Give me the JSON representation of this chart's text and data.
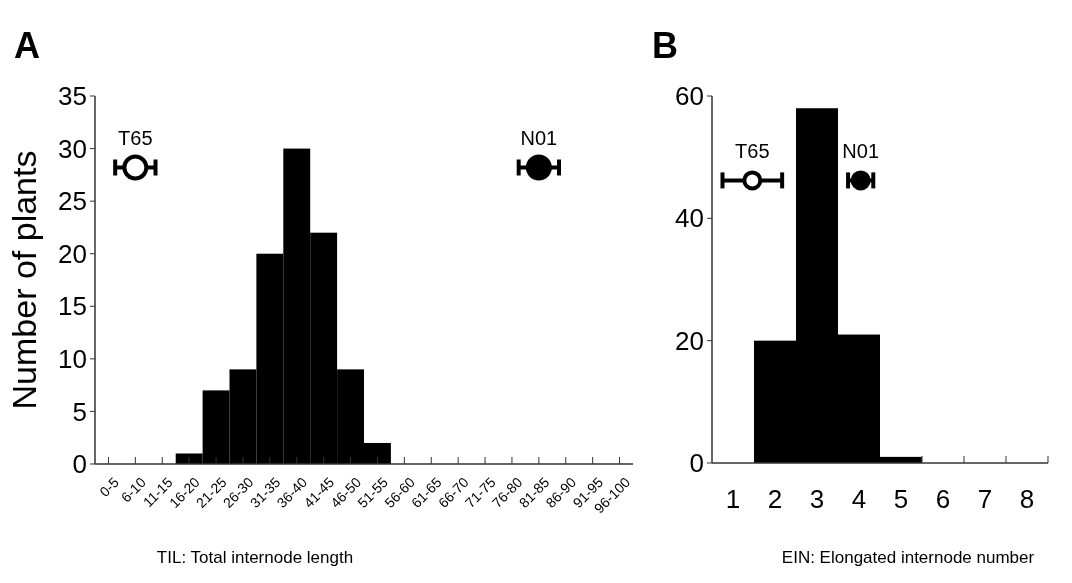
{
  "chart_data": [
    {
      "type": "bar",
      "title": "A",
      "xlabel": "TIL: Total internode length",
      "ylabel": "Number of plants",
      "categories": [
        "0-5",
        "6-10",
        "11-15",
        "16-20",
        "21-25",
        "26-30",
        "31-35",
        "36-40",
        "41-45",
        "46-50",
        "51-55",
        "56-60",
        "61-65",
        "66-70",
        "71-75",
        "76-80",
        "81-85",
        "86-90",
        "91-95",
        "96-100"
      ],
      "values": [
        0,
        0,
        0,
        1,
        7,
        9,
        20,
        30,
        22,
        9,
        2,
        0,
        0,
        0,
        0,
        0,
        0,
        0,
        0,
        0
      ],
      "color": "#000000",
      "series": [
        {
          "type": "scatter",
          "name": "T65",
          "color": "#ffffff",
          "x": [
            "6-10"
          ],
          "values": [
            28.2
          ]
        },
        {
          "type": "scatter",
          "name": "N01",
          "color": "#000000",
          "x": [
            "81-85"
          ],
          "values": [
            28.2
          ]
        }
      ],
      "ylim": [
        0,
        35
      ],
      "yticks": [
        0,
        5,
        10,
        15,
        20,
        25,
        30,
        35
      ],
      "marker": "circle",
      "grid": false,
      "legend": false
    },
    {
      "type": "histogram",
      "title": "B",
      "xlabel": "EIN: Elongated internode number",
      "bins": [
        0.5,
        1.5,
        2.5,
        3.5,
        4.5,
        5.5,
        6.5,
        7.5,
        8.5
      ],
      "values": [
        0,
        20,
        58,
        21,
        1,
        0,
        0,
        0
      ],
      "color": "#000000",
      "series": [
        {
          "type": "scatter",
          "name": "T65",
          "color": "#ffffff",
          "x": [
            1.46
          ],
          "values": [
            46.2
          ],
          "xerrors": [
            0.71
          ]
        },
        {
          "type": "scatter",
          "name": "N01",
          "color": "#000000",
          "x": [
            4.04
          ],
          "values": [
            46.2
          ],
          "xerrors": [
            0.3
          ]
        }
      ],
      "xlim": [
        0.5,
        8.5
      ],
      "ylim": [
        0,
        60
      ],
      "xticks": [
        1,
        2,
        3,
        4,
        5,
        6,
        7,
        8,
        {
          "value": 5.5,
          "label": null
        },
        {
          "value": 6.5,
          "label": null
        },
        {
          "value": 7.5,
          "label": null
        },
        {
          "value": 8.5,
          "label": null
        }
      ],
      "yticks": [
        0,
        20,
        40,
        60
      ],
      "marker": "circle",
      "grid": false,
      "legend": false
    }
  ]
}
